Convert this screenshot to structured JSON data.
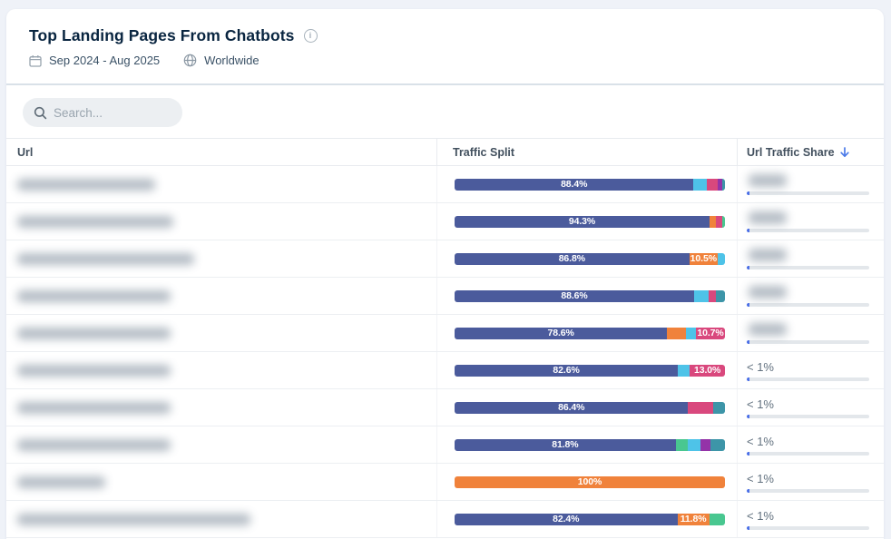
{
  "header": {
    "title": "Top Landing Pages From Chatbots",
    "date_range": "Sep 2024 - Aug 2025",
    "region": "Worldwide"
  },
  "icons": {
    "info_glyph": "i"
  },
  "search": {
    "placeholder": "Search..."
  },
  "palette": {
    "navy": "#4B5B9C",
    "cyan": "#4EC3E8",
    "pink": "#D9487D",
    "purple": "#9433A8",
    "teal": "#3D95A8",
    "orange": "#F0823B",
    "green": "#49C790",
    "share_fill_blue": "#4A6FE8",
    "share_track_gray": "#E3E7EB",
    "sort_arrow_blue": "#4B7AE8"
  },
  "table": {
    "columns": [
      {
        "label": "Url"
      },
      {
        "label": "Traffic Split"
      },
      {
        "label": "Url Traffic Share",
        "sort": "desc"
      }
    ],
    "share_fill_pct": 2,
    "rows": [
      {
        "url_redacted": true,
        "url_blur_width": 152,
        "segments": [
          {
            "color": "navy",
            "pct": 88.4,
            "label": "88.4%"
          },
          {
            "color": "cyan",
            "pct": 5.0
          },
          {
            "color": "pink",
            "pct": 4.0
          },
          {
            "color": "purple",
            "pct": 1.6
          },
          {
            "color": "teal",
            "pct": 1.0
          }
        ],
        "share": {
          "redacted": true
        }
      },
      {
        "url_redacted": true,
        "url_blur_width": 172,
        "segments": [
          {
            "color": "navy",
            "pct": 94.3,
            "label": "94.3%"
          },
          {
            "color": "orange",
            "pct": 2.4
          },
          {
            "color": "pink",
            "pct": 2.3
          },
          {
            "color": "green",
            "pct": 1.0
          }
        ],
        "share": {
          "redacted": true
        }
      },
      {
        "url_redacted": true,
        "url_blur_width": 195,
        "segments": [
          {
            "color": "navy",
            "pct": 86.8,
            "label": "86.8%"
          },
          {
            "color": "orange",
            "pct": 10.5,
            "label": "10.5%"
          },
          {
            "color": "cyan",
            "pct": 2.7
          }
        ],
        "share": {
          "redacted": true
        }
      },
      {
        "url_redacted": true,
        "url_blur_width": 169,
        "segments": [
          {
            "color": "navy",
            "pct": 88.6,
            "label": "88.6%"
          },
          {
            "color": "cyan",
            "pct": 5.4
          },
          {
            "color": "pink",
            "pct": 2.6
          },
          {
            "color": "teal",
            "pct": 3.4
          }
        ],
        "share": {
          "redacted": true
        }
      },
      {
        "url_redacted": true,
        "url_blur_width": 169,
        "segments": [
          {
            "color": "navy",
            "pct": 78.6,
            "label": "78.6%"
          },
          {
            "color": "orange",
            "pct": 7.0
          },
          {
            "color": "cyan",
            "pct": 3.7
          },
          {
            "color": "pink",
            "pct": 10.7,
            "label": "10.7%"
          }
        ],
        "share": {
          "redacted": true
        }
      },
      {
        "url_redacted": true,
        "url_blur_width": 169,
        "segments": [
          {
            "color": "navy",
            "pct": 82.6,
            "label": "82.6%"
          },
          {
            "color": "cyan",
            "pct": 4.4
          },
          {
            "color": "pink",
            "pct": 13.0,
            "label": "13.0%"
          }
        ],
        "share": {
          "value": "< 1%"
        }
      },
      {
        "url_redacted": true,
        "url_blur_width": 169,
        "segments": [
          {
            "color": "navy",
            "pct": 86.4,
            "label": "86.4%"
          },
          {
            "color": "pink",
            "pct": 9.2
          },
          {
            "color": "teal",
            "pct": 4.4
          }
        ],
        "share": {
          "value": "< 1%"
        }
      },
      {
        "url_redacted": true,
        "url_blur_width": 169,
        "segments": [
          {
            "color": "navy",
            "pct": 81.8,
            "label": "81.8%"
          },
          {
            "color": "green",
            "pct": 4.4
          },
          {
            "color": "cyan",
            "pct": 4.6
          },
          {
            "color": "purple",
            "pct": 4.0
          },
          {
            "color": "teal",
            "pct": 5.2
          }
        ],
        "share": {
          "value": "< 1%"
        }
      },
      {
        "url_redacted": true,
        "url_blur_width": 97,
        "segments": [
          {
            "color": "orange",
            "pct": 100,
            "label": "100%"
          }
        ],
        "share": {
          "value": "< 1%"
        }
      },
      {
        "url_redacted": true,
        "url_blur_width": 257,
        "segments": [
          {
            "color": "navy",
            "pct": 82.4,
            "label": "82.4%"
          },
          {
            "color": "orange",
            "pct": 11.8,
            "label": "11.8%"
          },
          {
            "color": "green",
            "pct": 5.8
          }
        ],
        "share": {
          "value": "< 1%"
        }
      }
    ]
  }
}
